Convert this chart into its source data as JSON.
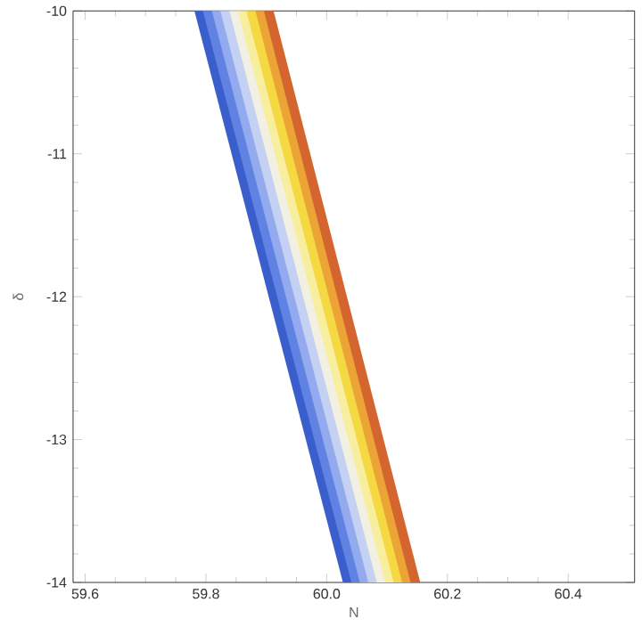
{
  "chart_data": {
    "type": "line",
    "xlabel": "N",
    "ylabel": "δ",
    "xlim": [
      59.58,
      60.51
    ],
    "ylim": [
      -14,
      -10
    ],
    "xticks": [
      59.6,
      59.8,
      {
        "value": 60,
        "label": "60.0"
      },
      60.2,
      60.4
    ],
    "yticks": [
      -14,
      -13,
      -12,
      -11,
      -10
    ],
    "grid": false,
    "marker": "none",
    "line_style": "solid",
    "series": [
      {
        "color": "#3a5fcd",
        "x": [
          59.789,
          60.035
        ],
        "values": [
          -10,
          -14
        ]
      },
      {
        "color": "#5f82e3",
        "x": [
          59.803,
          60.049
        ],
        "values": [
          -10,
          -14
        ]
      },
      {
        "color": "#93abee",
        "x": [
          59.818,
          60.063
        ],
        "values": [
          -10,
          -14
        ]
      },
      {
        "color": "#c5d1f3",
        "x": [
          59.832,
          60.077
        ],
        "values": [
          -10,
          -14
        ]
      },
      {
        "color": "#f2f0e2",
        "x": [
          59.847,
          60.091
        ],
        "values": [
          -10,
          -14
        ]
      },
      {
        "color": "#f8eea0",
        "x": [
          59.861,
          60.105
        ],
        "values": [
          -10,
          -14
        ]
      },
      {
        "color": "#f4d943",
        "x": [
          59.875,
          60.119
        ],
        "values": [
          -10,
          -14
        ]
      },
      {
        "color": "#eba435",
        "x": [
          59.89,
          60.133
        ],
        "values": [
          -10,
          -14
        ]
      },
      {
        "color": "#d5652f",
        "x": [
          59.904,
          60.147
        ],
        "values": [
          -10,
          -14
        ]
      }
    ]
  }
}
